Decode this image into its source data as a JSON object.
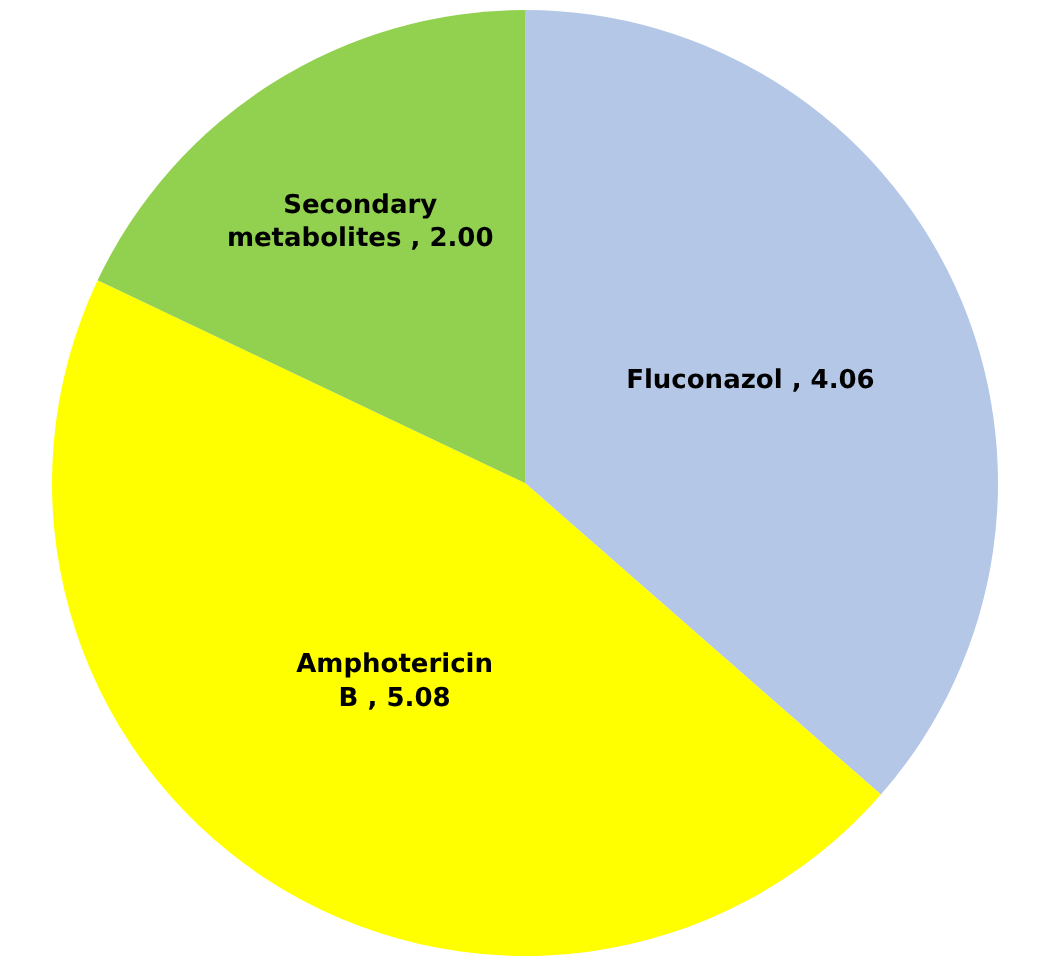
{
  "chart_data": {
    "type": "pie",
    "categories": [
      "Fluconazol",
      "Amphotericin B",
      "Secondary metabolites"
    ],
    "values": [
      4.06,
      5.08,
      2.0
    ],
    "value_labels": [
      "4.06",
      "5.08",
      "2.00"
    ],
    "colors": [
      "#b4c7e7",
      "#ffff00",
      "#92d050"
    ],
    "legend": false
  }
}
